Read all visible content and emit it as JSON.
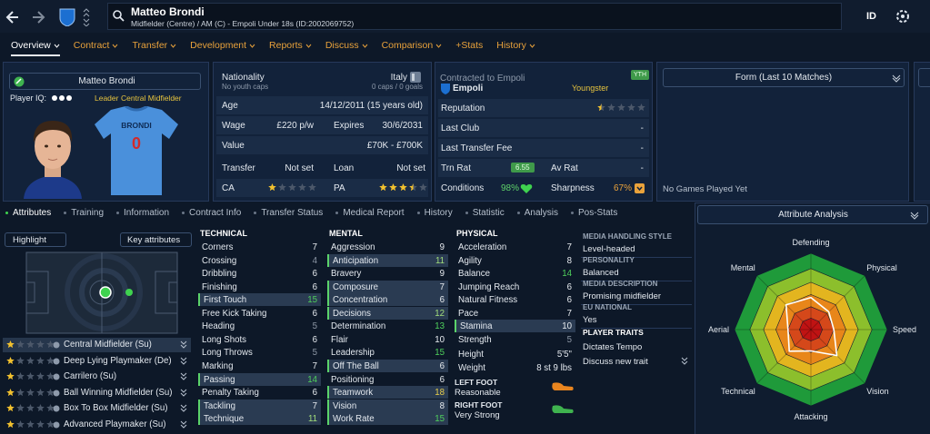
{
  "header": {
    "name": "Matteo Brondi",
    "subtitle": "Midfielder (Centre) / AM (C) - Empoli Under 18s (ID:2002069752)",
    "id_button": "ID"
  },
  "nav": [
    "Overview",
    "Contract",
    "Transfer",
    "Development",
    "Reports",
    "Discuss",
    "Comparison",
    "+Stats",
    "History"
  ],
  "profile": {
    "name": "Matteo Brondi",
    "player_iq_label": "Player IQ:",
    "tags": [
      "Leader",
      "Central Midfielder"
    ],
    "shirt_name": "BRONDI",
    "shirt_number": "0"
  },
  "info": {
    "nationality_label": "Nationality",
    "nationality": "Italy",
    "youth_caps": "No youth caps",
    "caps": "0 caps / 0 goals",
    "age_label": "Age",
    "age": "14/12/2011 (15 years old)",
    "wage_label": "Wage",
    "wage": "£220 p/w",
    "expires_label": "Expires",
    "expires": "30/6/2031",
    "value_label": "Value",
    "value": "£70K - £700K",
    "transfer_label": "Transfer",
    "transfer": "Not set",
    "loan_label": "Loan",
    "loan": "Not set",
    "ca_label": "CA",
    "ca_stars": 1,
    "pa_label": "PA",
    "pa_stars": 3.5
  },
  "contract": {
    "contracted_label": "Contracted to Empoli",
    "badge": "YTH",
    "club": "Empoli",
    "status": "Youngster",
    "reputation_label": "Reputation",
    "reputation_stars": 0.5,
    "last_club_label": "Last Club",
    "last_club": "-",
    "last_fee_label": "Last Transfer Fee",
    "last_fee": "-",
    "trn_rat_label": "Trn Rat",
    "trn_rat": "6.55",
    "av_rat_label": "Av Rat",
    "av_rat": "-",
    "conditions_label": "Conditions",
    "conditions": "98%",
    "sharpness_label": "Sharpness",
    "sharpness": "67%"
  },
  "form": {
    "title": "Form (Last 10 Matches)",
    "empty": "No Games Played Yet"
  },
  "subtabs": [
    "Attributes",
    "Training",
    "Information",
    "Contract Info",
    "Transfer Status",
    "Medical Report",
    "History",
    "Statistic",
    "Analysis",
    "Pos-Stats"
  ],
  "left": {
    "highlight": "Highlight",
    "key_attributes": "Key attributes",
    "roles": [
      {
        "name": "Central Midfielder (Su)",
        "stars": 1
      },
      {
        "name": "Deep Lying Playmaker (De)",
        "stars": 1
      },
      {
        "name": "Carrilero (Su)",
        "stars": 1
      },
      {
        "name": "Ball Winning Midfielder (Su)",
        "stars": 1
      },
      {
        "name": "Box To Box Midfielder (Su)",
        "stars": 1
      },
      {
        "name": "Advanced Playmaker (Su)",
        "stars": 1
      }
    ]
  },
  "attributes": {
    "technical": {
      "title": "TECHNICAL",
      "items": [
        {
          "name": "Corners",
          "value": 7
        },
        {
          "name": "Crossing",
          "value": 4
        },
        {
          "name": "Dribbling",
          "value": 6
        },
        {
          "name": "Finishing",
          "value": 6
        },
        {
          "name": "First Touch",
          "value": 15
        },
        {
          "name": "Free Kick Taking",
          "value": 6
        },
        {
          "name": "Heading",
          "value": 5
        },
        {
          "name": "Long Shots",
          "value": 6
        },
        {
          "name": "Long Throws",
          "value": 5
        },
        {
          "name": "Marking",
          "value": 7
        },
        {
          "name": "Passing",
          "value": 14
        },
        {
          "name": "Penalty Taking",
          "value": 6
        },
        {
          "name": "Tackling",
          "value": 7
        },
        {
          "name": "Technique",
          "value": 11
        }
      ]
    },
    "mental": {
      "title": "MENTAL",
      "items": [
        {
          "name": "Aggression",
          "value": 9
        },
        {
          "name": "Anticipation",
          "value": 11
        },
        {
          "name": "Bravery",
          "value": 9
        },
        {
          "name": "Composure",
          "value": 7
        },
        {
          "name": "Concentration",
          "value": 6
        },
        {
          "name": "Decisions",
          "value": 12
        },
        {
          "name": "Determination",
          "value": 13
        },
        {
          "name": "Flair",
          "value": 10
        },
        {
          "name": "Leadership",
          "value": 15
        },
        {
          "name": "Off The Ball",
          "value": 6
        },
        {
          "name": "Positioning",
          "value": 6
        },
        {
          "name": "Teamwork",
          "value": 18
        },
        {
          "name": "Vision",
          "value": 8
        },
        {
          "name": "Work Rate",
          "value": 15
        }
      ]
    },
    "physical": {
      "title": "PHYSICAL",
      "items": [
        {
          "name": "Acceleration",
          "value": 7
        },
        {
          "name": "Agility",
          "value": 8
        },
        {
          "name": "Balance",
          "value": 14
        },
        {
          "name": "Jumping Reach",
          "value": 6
        },
        {
          "name": "Natural Fitness",
          "value": 6
        },
        {
          "name": "Pace",
          "value": 7
        },
        {
          "name": "Stamina",
          "value": 10
        },
        {
          "name": "Strength",
          "value": 5
        }
      ]
    }
  },
  "physical_extra": {
    "height_label": "Height",
    "height": "5'5\"",
    "weight_label": "Weight",
    "weight": "8 st 9 lbs",
    "left_foot_label": "LEFT FOOT",
    "left_foot": "Reasonable",
    "right_foot_label": "RIGHT FOOT",
    "right_foot": "Very Strong"
  },
  "details": [
    {
      "label": "MEDIA HANDLING STYLE",
      "value": "Level-headed"
    },
    {
      "label": "PERSONALITY",
      "value": "Balanced"
    },
    {
      "label": "MEDIA DESCRIPTION",
      "value": "Promising midfielder"
    },
    {
      "label": "EU NATIONAL",
      "value": "Yes"
    }
  ],
  "traits": {
    "title": "PLAYER TRAITS",
    "items": [
      "Dictates Tempo",
      "Discuss new trait"
    ]
  },
  "analysis": {
    "title": "Attribute Analysis",
    "axes": [
      "Defending",
      "Physical",
      "Speed",
      "Vision",
      "Attacking",
      "Technical",
      "Aerial",
      "Mental"
    ]
  }
}
